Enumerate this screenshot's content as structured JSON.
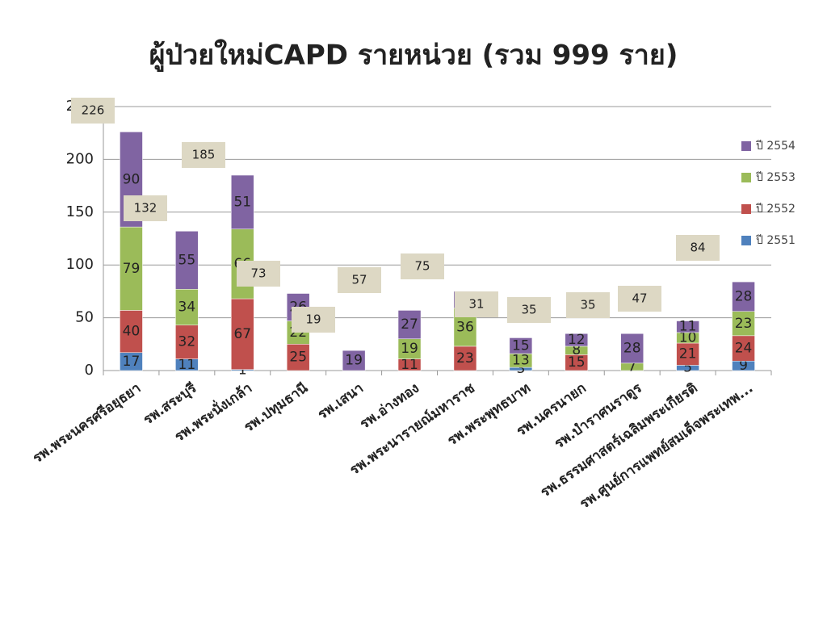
{
  "chart_data": {
    "type": "stacked_bar",
    "title": "ผู้ป่วยใหม่CAPD รายหน่วย (รวม 999 ราย)",
    "categories": [
      "รพ.พระนครศรีอยุธยา",
      "รพ.สระบุรี",
      "รพ.พระนั่งเกล้า",
      "รพ.ปทุมธานี",
      "รพ.เสนา",
      "รพ.อ่างทอง",
      "รพ.พระนารายณ์มหาราช",
      "รพ.พระพุทธบาท",
      "รพ.นครนายก",
      "รพ.บำราศนราดูร",
      "รพ.ธรรมศาสตร์เฉลิมพระเกียรติ",
      "รพ.ศูนย์การแพทย์สมเด็จพระเทพ..."
    ],
    "series": [
      {
        "name": "ปี 2551",
        "color": "#4f81bd",
        "values": [
          17,
          11,
          1,
          null,
          null,
          null,
          null,
          3,
          null,
          null,
          5,
          9
        ]
      },
      {
        "name": "ปี 2552",
        "color": "#c0504d",
        "values": [
          40,
          32,
          67,
          25,
          null,
          11,
          23,
          null,
          15,
          null,
          21,
          24
        ]
      },
      {
        "name": "ปี 2553",
        "color": "#9bbb59",
        "values": [
          79,
          34,
          66,
          22,
          null,
          19,
          36,
          13,
          8,
          7,
          10,
          23
        ]
      },
      {
        "name": "ปี 2554",
        "color": "#8064a2",
        "values": [
          90,
          55,
          51,
          26,
          19,
          27,
          16,
          15,
          12,
          28,
          11,
          28
        ]
      }
    ],
    "totals": [
      226,
      132,
      185,
      73,
      19,
      57,
      75,
      31,
      35,
      35,
      47,
      84
    ],
    "ylim": [
      0,
      250
    ],
    "yticks": [
      0,
      50,
      100,
      150,
      200,
      250
    ],
    "grid": true,
    "legend": "right"
  }
}
